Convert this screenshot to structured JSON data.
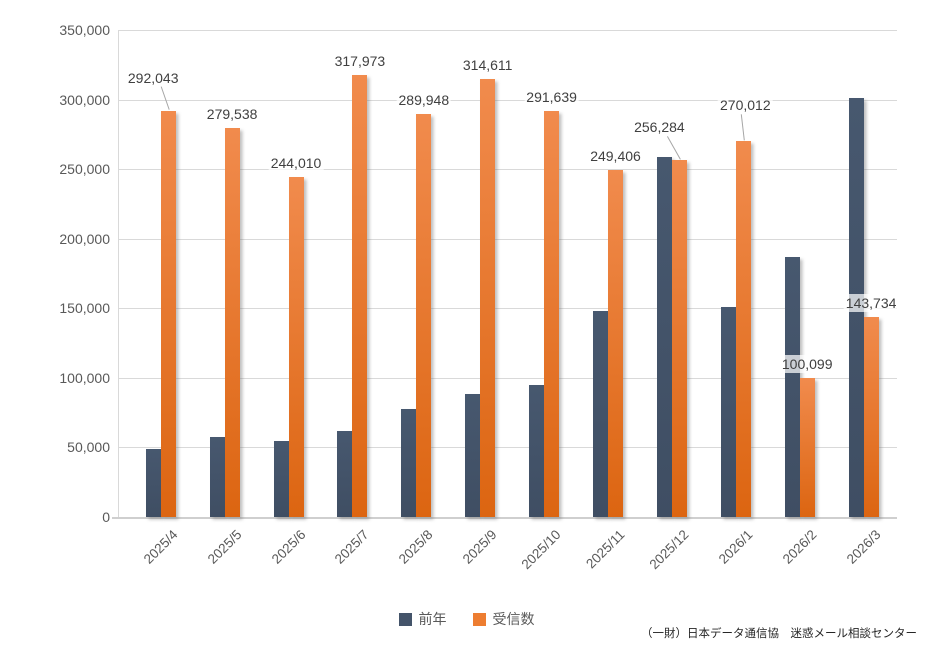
{
  "chart_data": {
    "type": "bar",
    "title": "",
    "categories": [
      "2025/4",
      "2025/5",
      "2025/6",
      "2025/7",
      "2025/8",
      "2025/9",
      "2025/10",
      "2025/11",
      "2025/12",
      "2026/1",
      "2026/2",
      "2026/3"
    ],
    "series": [
      {
        "name": "前年",
        "color": "#44546A",
        "values": [
          49000,
          57500,
          54500,
          62000,
          77500,
          88500,
          95000,
          148000,
          258500,
          151000,
          187000,
          301000
        ]
      },
      {
        "name": "受信数",
        "color": "#ED7D31",
        "values": [
          292043,
          279538,
          244010,
          317973,
          289948,
          314611,
          291639,
          249406,
          256284,
          270012,
          100099,
          143734
        ]
      }
    ],
    "data_labels_series": "受信数",
    "data_labels": [
      "292,043",
      "279,538",
      "244,010",
      "317,973",
      "289,948",
      "314,611",
      "291,639",
      "249,406",
      "256,284",
      "270,012",
      "100,099",
      "143,734"
    ],
    "leader_line_indices": [
      0,
      8,
      9
    ],
    "ylim": [
      0,
      350000
    ],
    "ytick_step": 50000,
    "ytick_labels": [
      "0",
      "50,000",
      "100,000",
      "150,000",
      "200,000",
      "250,000",
      "300,000",
      "350,000"
    ],
    "grid": "horizontal",
    "legend_position": "bottom"
  },
  "legend": {
    "items": [
      {
        "label": "前年",
        "color": "#44546A"
      },
      {
        "label": "受信数",
        "color": "#ED7D31"
      }
    ]
  },
  "footer": {
    "credit": "（一財）日本データ通信協　迷惑メール相談センター"
  },
  "colors": {
    "navy_top": "#47586F",
    "navy_bottom": "#3F4E63",
    "orange_top": "#F18B4D",
    "orange_bottom": "#DC6511",
    "gridline": "#D9D9D9",
    "axis_line": "#CFCFCF",
    "axis_text": "#595959",
    "data_label_text": "#404040",
    "leader_line": "#A6A6A6",
    "background": "#FFFFFF"
  }
}
